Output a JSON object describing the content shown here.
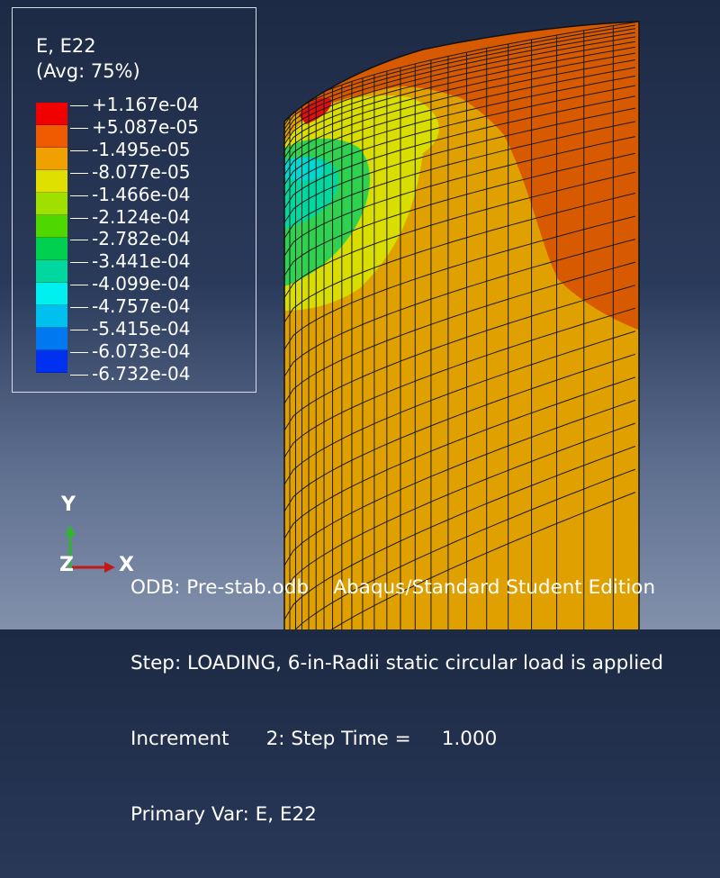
{
  "legend": {
    "title": "E, E22",
    "subtitle": "(Avg: 75%)",
    "labels": [
      "+1.167e-04",
      "+5.087e-05",
      "-1.495e-05",
      "-8.077e-05",
      "-1.466e-04",
      "-2.124e-04",
      "-2.782e-04",
      "-3.441e-04",
      "-4.099e-04",
      "-4.757e-04",
      "-5.415e-04",
      "-6.073e-04",
      "-6.732e-04"
    ],
    "colors": [
      "#f00000",
      "#f05a00",
      "#f0a000",
      "#e0e000",
      "#a0e000",
      "#4ed800",
      "#00d050",
      "#00d8a0",
      "#00f0f0",
      "#00c0f0",
      "#0078f0",
      "#0030f0",
      "#0000f0"
    ]
  },
  "triad": {
    "y": "Y",
    "z": "Z",
    "x": "X"
  },
  "info": {
    "line1": "ODB: Pre-stab.odb    Abaqus/Standard Student Edition",
    "line2": "Step: LOADING, 6-in-Radii static circular load is applied",
    "line3": "Increment      2: Step Time =     1.000",
    "line4": "Primary Var: E, E22"
  },
  "contour_colors": {
    "base": "#e0a000",
    "orange": "#d85a00",
    "red": "#e01010",
    "yellow": "#d8e000",
    "green": "#30d050",
    "cyan": "#00d8d0"
  }
}
